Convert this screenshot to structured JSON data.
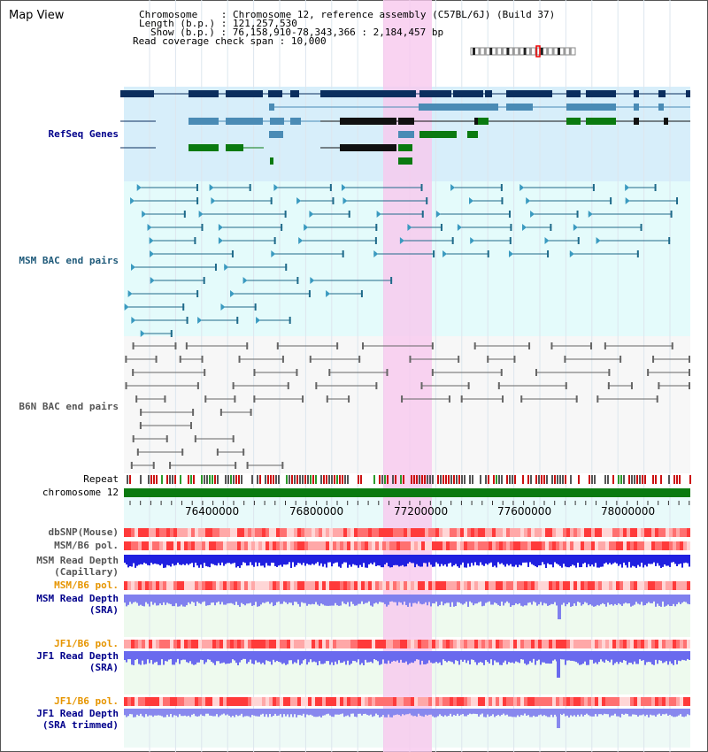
{
  "title": "Map View",
  "info": {
    "chromosome_label": "Chromosome",
    "chromosome_value": "Chromosome 12, reference assembly (C57BL/6J) (Build 37)",
    "length_label": "Length (b.p.)",
    "length_value": "121,257,530",
    "show_label": "Show (b.p.)",
    "show_value": "76,158,910-78,343,366 : 2,184,457 bp",
    "span_label": "Read coverage check span",
    "span_value": "10,000"
  },
  "axis": {
    "ticks": [
      "76400000",
      "76800000",
      "77200000",
      "77600000",
      "78000000"
    ]
  },
  "tracks": {
    "refseq": "RefSeq Genes",
    "msm_bac": "MSM BAC end pairs",
    "b6n_bac": "B6N BAC end pairs",
    "repeat": "Repeat",
    "chromosome": "chromosome 12",
    "dbsnp": "dbSNP(Mouse)",
    "msm_b6_pol": "MSM/B6 pol.",
    "msm_depth_cap_1": "MSM Read Depth",
    "msm_depth_cap_2": "(Capillary)",
    "msm_b6_pol_2": "MSM/B6 pol.",
    "msm_depth_sra_1": "MSM Read Depth",
    "msm_depth_sra_2": "(SRA)",
    "jf1_b6_pol": "JF1/B6 pol.",
    "jf1_depth_sra_1": "JF1 Read Depth",
    "jf1_depth_sra_2": "(SRA)",
    "jf1_b6_pol_2": "JF1/B6 pol.",
    "jf1_depth_trim_1": "JF1 Read Depth",
    "jf1_depth_trim_2": "(SRA trimmed)"
  },
  "colors": {
    "label_blue": "#00008b",
    "label_teal": "#1f5a7a",
    "label_orange": "#e69500",
    "highlight": "#f8c8ee",
    "refseq_bg": "#d7eefa",
    "msm_bg": "#e4fbfb"
  }
}
